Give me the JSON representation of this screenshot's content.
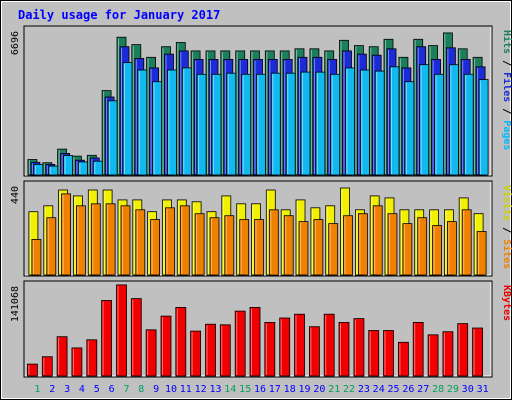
{
  "chart_data": {
    "type": "bar",
    "title": "Daily usage for January 2017",
    "days": [
      "1",
      "2",
      "3",
      "4",
      "5",
      "6",
      "7",
      "8",
      "9",
      "10",
      "11",
      "12",
      "13",
      "14",
      "15",
      "16",
      "17",
      "18",
      "19",
      "20",
      "21",
      "22",
      "23",
      "24",
      "25",
      "26",
      "27",
      "28",
      "29",
      "30",
      "31"
    ],
    "weekend_days": [
      "1",
      "7",
      "8",
      "14",
      "15",
      "21",
      "22",
      "28",
      "29"
    ],
    "panels": [
      {
        "id": "top",
        "max_label": "6696",
        "ylim": [
          0,
          6696
        ],
        "series": [
          {
            "name": "Hits",
            "color": "#1b7f5a",
            "values": [
              730,
              580,
              1220,
              890,
              930,
              3980,
              6500,
              6150,
              5550,
              6050,
              6250,
              5850,
              5850,
              5850,
              5850,
              5850,
              5850,
              5850,
              5950,
              5950,
              5850,
              6350,
              6100,
              6050,
              6400,
              5550,
              6400,
              6100,
              6700,
              5950,
              5550
            ]
          },
          {
            "name": "Files",
            "color": "#1a2bd8",
            "values": [
              600,
              500,
              1020,
              700,
              800,
              3680,
              6050,
              5500,
              5050,
              5700,
              5850,
              5450,
              5450,
              5450,
              5450,
              5450,
              5450,
              5450,
              5550,
              5550,
              5450,
              5850,
              5700,
              5650,
              5950,
              5050,
              6050,
              5450,
              6000,
              5450,
              5100
            ]
          },
          {
            "name": "Pages",
            "color": "#12b8f0",
            "values": [
              500,
              420,
              920,
              620,
              650,
              3500,
              5300,
              4950,
              4400,
              4950,
              5050,
              4750,
              4750,
              4800,
              4750,
              4750,
              4800,
              4800,
              4850,
              4850,
              4750,
              5050,
              4950,
              4900,
              5100,
              4400,
              5200,
              4750,
              5200,
              4750,
              4500
            ]
          }
        ],
        "legend_parts": [
          "Pages",
          "/",
          "Files",
          "/",
          "Hits"
        ]
      },
      {
        "id": "middle",
        "max_label": "440",
        "ylim": [
          0,
          440
        ],
        "series": [
          {
            "name": "Visits",
            "color": "#f0f000",
            "values": [
              320,
              350,
              430,
              400,
              430,
              430,
              380,
              380,
              320,
              380,
              380,
              370,
              320,
              400,
              360,
              360,
              430,
              330,
              380,
              340,
              350,
              440,
              330,
              400,
              390,
              330,
              330,
              330,
              330,
              390,
              310
            ]
          },
          {
            "name": "Sites",
            "color": "#f08000",
            "values": [
              180,
              290,
              410,
              350,
              360,
              360,
              350,
              330,
              280,
              340,
              350,
              310,
              290,
              300,
              280,
              280,
              330,
              300,
              270,
              280,
              260,
              300,
              310,
              350,
              310,
              260,
              290,
              250,
              270,
              330,
              220
            ]
          }
        ],
        "legend_parts": [
          "Sites",
          "/",
          "Visits"
        ]
      },
      {
        "id": "bottom",
        "max_label": "141068",
        "ylim": [
          0,
          141068
        ],
        "series": [
          {
            "name": "KBytes",
            "color": "#f00000",
            "values": [
              19000,
              31000,
              63000,
              45000,
              58000,
              121000,
              146000,
              124000,
              74000,
              96000,
              110000,
              72000,
              83000,
              82000,
              104000,
              110000,
              86000,
              93000,
              99000,
              79000,
              99000,
              86000,
              92000,
              73000,
              73000,
              54000,
              86000,
              66000,
              71000,
              84000,
              77000
            ]
          }
        ],
        "legend_parts": [
          "KBytes"
        ]
      }
    ],
    "colors": {
      "background": "#c0c0c0",
      "title": "#0000ff",
      "day_label": "#0000ff",
      "weekend_label": "#00a060",
      "frame": "#000000"
    }
  }
}
